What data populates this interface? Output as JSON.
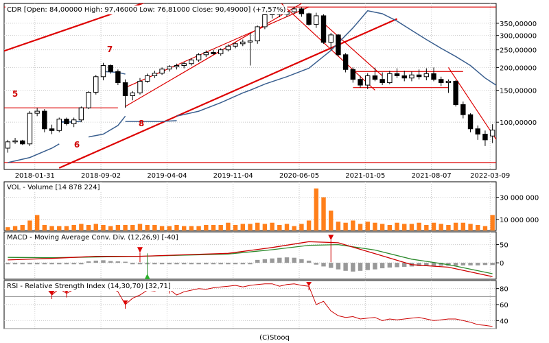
{
  "credit": "(C)Stooq",
  "colors": {
    "up_candle": "#ffffff",
    "down_candle": "#000000",
    "trendline": "#dd0000",
    "ma_line": "#3a5f8f",
    "volume_bar": "#ff7f1a",
    "macd_line": "#cc0000",
    "signal_line": "#2d8a2d",
    "histogram": "#999999",
    "rsi_line": "#cc0000",
    "grid": "#c8c8c8"
  },
  "chart_data": [
    {
      "type": "candlestick",
      "title": "CDR [Open: 84,00000  High: 97,46000  Low: 76,81000  Close: 90,49000]  (+7,57%)",
      "x_tick_labels": [
        "2018-01-31",
        "2018-09-02",
        "2019-04-04",
        "2019-11-04",
        "2020-06-05",
        "2021-01-05",
        "2021-08-07",
        "2022-03-09"
      ],
      "y_tick_labels": [
        "350,00000",
        "300,00000",
        "250,00000",
        "200,00000",
        "150,00000",
        "100,00000"
      ],
      "y_ticks": [
        350,
        300,
        250,
        200,
        150,
        100
      ],
      "y_scale": "log",
      "ylim": [
        55,
        450
      ],
      "annotations": [
        "5",
        "6",
        "7",
        "8"
      ],
      "candles": [
        {
          "o": 72,
          "h": 80,
          "l": 68,
          "c": 78
        },
        {
          "o": 78,
          "h": 82,
          "l": 76,
          "c": 79
        },
        {
          "o": 79,
          "h": 80,
          "l": 75,
          "c": 76
        },
        {
          "o": 76,
          "h": 115,
          "l": 74,
          "c": 112
        },
        {
          "o": 112,
          "h": 120,
          "l": 108,
          "c": 115
        },
        {
          "o": 115,
          "h": 118,
          "l": 88,
          "c": 92
        },
        {
          "o": 92,
          "h": 97,
          "l": 86,
          "c": 90
        },
        {
          "o": 90,
          "h": 106,
          "l": 88,
          "c": 104
        },
        {
          "o": 104,
          "h": 106,
          "l": 96,
          "c": 98
        },
        {
          "o": 98,
          "h": 106,
          "l": 94,
          "c": 103
        },
        {
          "o": 103,
          "h": 122,
          "l": 100,
          "c": 120
        },
        {
          "o": 120,
          "h": 148,
          "l": 118,
          "c": 146
        },
        {
          "o": 146,
          "h": 182,
          "l": 142,
          "c": 178
        },
        {
          "o": 178,
          "h": 212,
          "l": 170,
          "c": 205
        },
        {
          "o": 205,
          "h": 208,
          "l": 185,
          "c": 190
        },
        {
          "o": 190,
          "h": 195,
          "l": 160,
          "c": 165
        },
        {
          "o": 165,
          "h": 172,
          "l": 120,
          "c": 140
        },
        {
          "o": 140,
          "h": 148,
          "l": 132,
          "c": 145
        },
        {
          "o": 145,
          "h": 175,
          "l": 142,
          "c": 168
        },
        {
          "o": 168,
          "h": 185,
          "l": 165,
          "c": 180
        },
        {
          "o": 180,
          "h": 192,
          "l": 175,
          "c": 186
        },
        {
          "o": 186,
          "h": 200,
          "l": 182,
          "c": 196
        },
        {
          "o": 196,
          "h": 206,
          "l": 190,
          "c": 202
        },
        {
          "o": 202,
          "h": 210,
          "l": 195,
          "c": 205
        },
        {
          "o": 205,
          "h": 215,
          "l": 198,
          "c": 210
        },
        {
          "o": 210,
          "h": 225,
          "l": 205,
          "c": 220
        },
        {
          "o": 220,
          "h": 240,
          "l": 215,
          "c": 235
        },
        {
          "o": 235,
          "h": 248,
          "l": 228,
          "c": 242
        },
        {
          "o": 242,
          "h": 250,
          "l": 235,
          "c": 238
        },
        {
          "o": 238,
          "h": 255,
          "l": 232,
          "c": 250
        },
        {
          "o": 250,
          "h": 268,
          "l": 245,
          "c": 262
        },
        {
          "o": 262,
          "h": 275,
          "l": 255,
          "c": 270
        },
        {
          "o": 270,
          "h": 285,
          "l": 262,
          "c": 276
        },
        {
          "o": 276,
          "h": 310,
          "l": 205,
          "c": 280
        },
        {
          "o": 280,
          "h": 340,
          "l": 270,
          "c": 335
        },
        {
          "o": 335,
          "h": 395,
          "l": 325,
          "c": 390
        },
        {
          "o": 390,
          "h": 402,
          "l": 372,
          "c": 395
        },
        {
          "o": 395,
          "h": 400,
          "l": 378,
          "c": 392
        },
        {
          "o": 392,
          "h": 412,
          "l": 380,
          "c": 405
        },
        {
          "o": 405,
          "h": 432,
          "l": 395,
          "c": 420
        },
        {
          "o": 420,
          "h": 428,
          "l": 380,
          "c": 395
        },
        {
          "o": 395,
          "h": 400,
          "l": 340,
          "c": 345
        },
        {
          "o": 345,
          "h": 400,
          "l": 330,
          "c": 385
        },
        {
          "o": 385,
          "h": 392,
          "l": 270,
          "c": 275
        },
        {
          "o": 275,
          "h": 310,
          "l": 250,
          "c": 302
        },
        {
          "o": 302,
          "h": 305,
          "l": 230,
          "c": 235
        },
        {
          "o": 235,
          "h": 240,
          "l": 188,
          "c": 195
        },
        {
          "o": 195,
          "h": 200,
          "l": 165,
          "c": 172
        },
        {
          "o": 172,
          "h": 180,
          "l": 155,
          "c": 160
        },
        {
          "o": 160,
          "h": 186,
          "l": 152,
          "c": 180
        },
        {
          "o": 180,
          "h": 200,
          "l": 168,
          "c": 172
        },
        {
          "o": 172,
          "h": 188,
          "l": 160,
          "c": 165
        },
        {
          "o": 165,
          "h": 192,
          "l": 162,
          "c": 185
        },
        {
          "o": 185,
          "h": 198,
          "l": 175,
          "c": 180
        },
        {
          "o": 180,
          "h": 192,
          "l": 168,
          "c": 175
        },
        {
          "o": 175,
          "h": 190,
          "l": 168,
          "c": 182
        },
        {
          "o": 182,
          "h": 195,
          "l": 172,
          "c": 178
        },
        {
          "o": 178,
          "h": 198,
          "l": 170,
          "c": 185
        },
        {
          "o": 185,
          "h": 200,
          "l": 168,
          "c": 172
        },
        {
          "o": 172,
          "h": 178,
          "l": 158,
          "c": 165
        },
        {
          "o": 165,
          "h": 172,
          "l": 145,
          "c": 168
        },
        {
          "o": 168,
          "h": 170,
          "l": 122,
          "c": 125
        },
        {
          "o": 125,
          "h": 130,
          "l": 105,
          "c": 110
        },
        {
          "o": 110,
          "h": 112,
          "l": 88,
          "c": 92
        },
        {
          "o": 92,
          "h": 96,
          "l": 80,
          "c": 86
        },
        {
          "o": 86,
          "h": 90,
          "l": 74,
          "c": 80
        },
        {
          "o": 84,
          "h": 97.46,
          "l": 76.81,
          "c": 90.49
        }
      ],
      "moving_average": [
        [
          0,
          60
        ],
        [
          3,
          64
        ],
        [
          6,
          72
        ],
        [
          7,
          76
        ],
        null,
        [
          7,
          100
        ],
        [
          10,
          101
        ],
        null,
        [
          7,
          101
        ],
        [
          9,
          100
        ],
        null,
        [
          11,
          83
        ],
        [
          13,
          86
        ],
        [
          15,
          96
        ],
        [
          16,
          108
        ],
        null,
        [
          13,
          190
        ],
        [
          15,
          188
        ],
        [
          16,
          184
        ],
        null,
        [
          16,
          101
        ],
        [
          19,
          101
        ],
        [
          21,
          101
        ],
        [
          23,
          102
        ],
        null,
        [
          23,
          108
        ],
        [
          26,
          115
        ],
        [
          29,
          128
        ],
        [
          32,
          145
        ],
        [
          33,
          150
        ],
        [
          35,
          162
        ],
        [
          38,
          178
        ],
        [
          41,
          198
        ],
        [
          44,
          248
        ],
        [
          47,
          330
        ],
        [
          49,
          410
        ],
        [
          51,
          395
        ],
        [
          53,
          360
        ],
        [
          55,
          320
        ],
        [
          57,
          285
        ],
        [
          59,
          255
        ],
        [
          61,
          230
        ],
        [
          63,
          205
        ],
        [
          65,
          175
        ],
        [
          67,
          155
        ]
      ],
      "trendlines": [
        {
          "from": [
            -2,
            235
          ],
          "to": [
            19,
            460
          ]
        },
        {
          "from": [
            7,
            56
          ],
          "to": [
            53,
            370
          ]
        },
        {
          "from": [
            16,
            122
          ],
          "to": [
            41,
            475
          ]
        },
        {
          "from": [
            16,
            155
          ],
          "to": [
            41,
            430
          ]
        },
        {
          "from": [
            -2,
            120
          ],
          "to": [
            15,
            120
          ]
        },
        {
          "from": [
            -2,
            60
          ],
          "to": [
            67,
            60
          ]
        },
        {
          "from": [
            -2,
            430
          ],
          "to": [
            67,
            430
          ]
        },
        {
          "from": [
            37,
            460
          ],
          "to": [
            50,
            150
          ]
        },
        {
          "from": [
            43,
            350
          ],
          "to": [
            51,
            180
          ]
        },
        {
          "from": [
            47,
            190
          ],
          "to": [
            62,
            190
          ]
        },
        {
          "from": [
            47,
            155
          ],
          "to": [
            60,
            155
          ]
        },
        {
          "from": [
            60,
            200
          ],
          "to": [
            67,
            75
          ]
        }
      ]
    },
    {
      "type": "bar",
      "title": "VOL - Volume [14 878 224]",
      "y_tick_labels": [
        "30 000 000",
        "10 000 000"
      ],
      "y_ticks": [
        30000000,
        10000000
      ],
      "ylim": [
        0,
        44000000
      ],
      "values": [
        3,
        4,
        5,
        9,
        14,
        5,
        4,
        4,
        4,
        5,
        6,
        5,
        6,
        5,
        4,
        5,
        5,
        5,
        6,
        5,
        5,
        4,
        4,
        5,
        4,
        4,
        4,
        5,
        5,
        5,
        7,
        5,
        6,
        6,
        7,
        6,
        7,
        5,
        6,
        4,
        6,
        9,
        38,
        30,
        18,
        8,
        7,
        9,
        6,
        8,
        7,
        6,
        5,
        7,
        6,
        6,
        7,
        5,
        7,
        6,
        5,
        7,
        7,
        6,
        5,
        4,
        14
      ]
    },
    {
      "type": "line",
      "title": "MACD - Moving Average Conv. Div. (12,26,9) [-40]",
      "y_tick_labels": [
        "50",
        "0"
      ],
      "y_ticks": [
        50,
        0
      ],
      "ylim": [
        -45,
        85
      ],
      "macd": [
        [
          0,
          8
        ],
        [
          6,
          12
        ],
        [
          12,
          18
        ],
        [
          18,
          18
        ],
        [
          24,
          22
        ],
        [
          30,
          26
        ],
        [
          36,
          42
        ],
        [
          41,
          58
        ],
        [
          45,
          55
        ],
        [
          50,
          25
        ],
        [
          55,
          -5
        ],
        [
          60,
          -12
        ],
        [
          66,
          -38
        ]
      ],
      "signal": [
        [
          0,
          15
        ],
        [
          6,
          14
        ],
        [
          12,
          16
        ],
        [
          18,
          18
        ],
        [
          24,
          21
        ],
        [
          30,
          24
        ],
        [
          36,
          36
        ],
        [
          41,
          48
        ],
        [
          45,
          50
        ],
        [
          50,
          35
        ],
        [
          55,
          10
        ],
        [
          60,
          -5
        ],
        [
          66,
          -30
        ]
      ],
      "histogram": [
        -4,
        -4,
        -4,
        -4,
        -4,
        -4,
        -4,
        -4,
        -4,
        -4,
        -4,
        4,
        6,
        7,
        5,
        4,
        3,
        -4,
        -4,
        -4,
        -4,
        -4,
        -4,
        -4,
        -4,
        -4,
        -4,
        -4,
        -4,
        -4,
        -4,
        -4,
        -4,
        -4,
        8,
        10,
        12,
        14,
        15,
        14,
        10,
        6,
        -5,
        -10,
        -14,
        -18,
        -22,
        -24,
        -22,
        -20,
        -18,
        -15,
        -13,
        -12,
        -11,
        -10,
        -9,
        -9,
        -8,
        -8,
        -8,
        -8,
        -7,
        -7,
        -7,
        -6,
        -6
      ],
      "sell_markers": [
        [
          18,
          28
        ],
        [
          44,
          62
        ]
      ],
      "buy_markers": [
        [
          19,
          -45
        ]
      ]
    },
    {
      "type": "line",
      "title": "RSI - Relative Strength Index (14,30,70) [32,71]",
      "y_tick_labels": [
        "80",
        "60",
        "40"
      ],
      "y_ticks": [
        80,
        60,
        40
      ],
      "ylim": [
        30,
        90
      ],
      "values": [
        82,
        80,
        81,
        78,
        83,
        84,
        72,
        80,
        74,
        79,
        81,
        82,
        80,
        83,
        82,
        76,
        60,
        68,
        72,
        78,
        77,
        80,
        79,
        72,
        76,
        78,
        80,
        79,
        81,
        82,
        83,
        84,
        82,
        84,
        85,
        86,
        86,
        83,
        85,
        86,
        84,
        83,
        60,
        64,
        52,
        46,
        44,
        45,
        42,
        43,
        44,
        40,
        42,
        41,
        42,
        43,
        44,
        42,
        40,
        41,
        42,
        42,
        40,
        38,
        35,
        34,
        32.7
      ],
      "markers": [
        6,
        8,
        16,
        22,
        41
      ],
      "ref_lines": [
        70,
        30
      ]
    }
  ]
}
